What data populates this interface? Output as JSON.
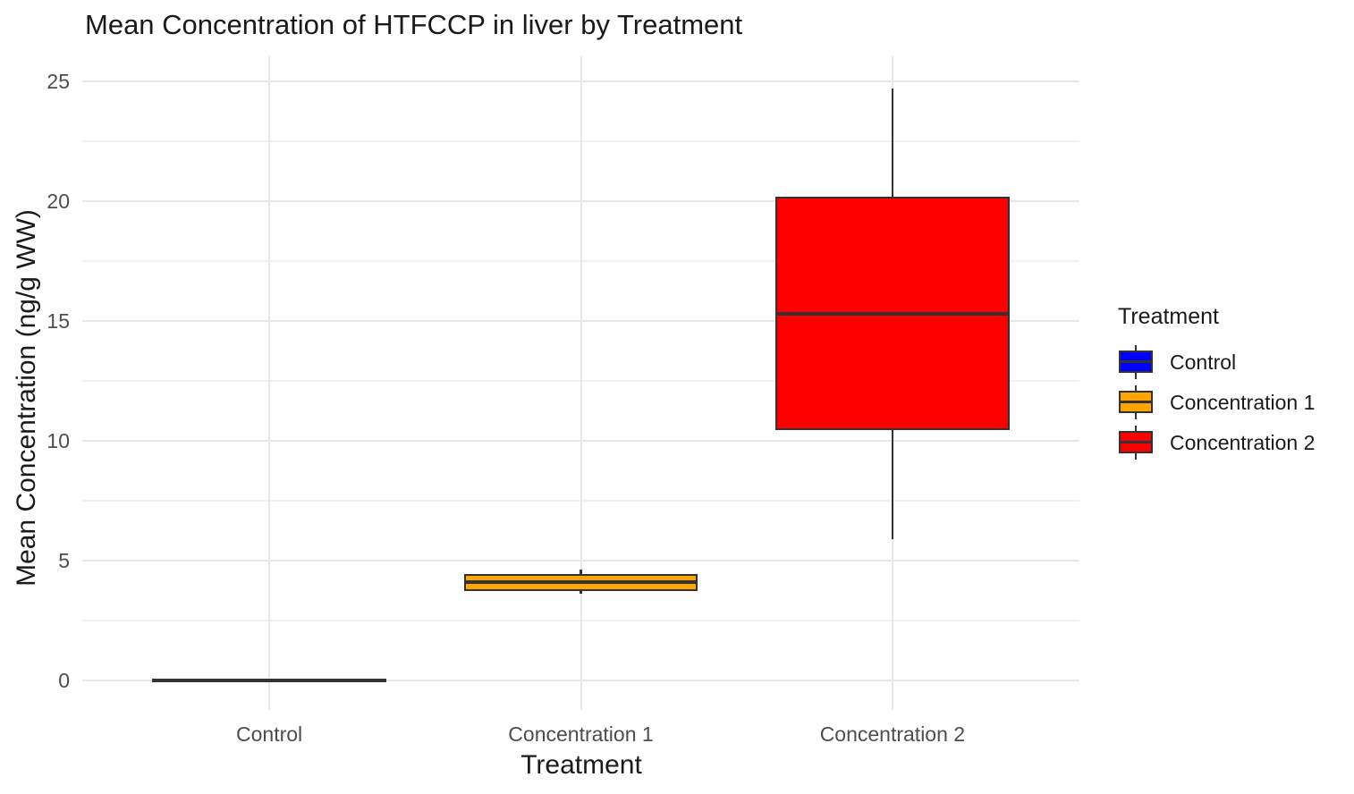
{
  "chart_data": {
    "type": "boxplot",
    "title": "Mean Concentration of HTFCCP in liver by Treatment",
    "xlabel": "Treatment",
    "ylabel": "Mean Concentration (ng/g WW)",
    "categories": [
      "Control",
      "Concentration 1",
      "Concentration 2"
    ],
    "y_ticks": [
      0,
      5,
      10,
      15,
      20,
      25
    ],
    "y_minor_ticks": [
      2.5,
      7.5,
      12.5,
      17.5,
      22.5
    ],
    "y_domain": [
      -1.25,
      26.05
    ],
    "grid": "horizontal major+minor, vertical at category centers",
    "legend_position": "right",
    "legend_title": "Treatment",
    "series": [
      {
        "name": "Control",
        "fill": "#0000ff",
        "min": 0,
        "q1": 0,
        "median": 0,
        "q3": 0,
        "max": 0
      },
      {
        "name": "Concentration 1",
        "fill": "#ffa500",
        "min": 3.6,
        "q1": 3.8,
        "median": 4.1,
        "q3": 4.35,
        "max": 4.6
      },
      {
        "name": "Concentration 2",
        "fill": "#ff0000",
        "min": 5.9,
        "q1": 10.5,
        "median": 15.3,
        "q3": 20.1,
        "max": 24.7
      }
    ],
    "colors": {
      "background": "#ffffff",
      "box_border": "#333333",
      "median_line": "#333333",
      "grid_major": "#e7e7e7",
      "grid_minor": "#f1f1f1",
      "tick_text": "#4d4d4d",
      "title_text": "#1a1a1a"
    }
  }
}
